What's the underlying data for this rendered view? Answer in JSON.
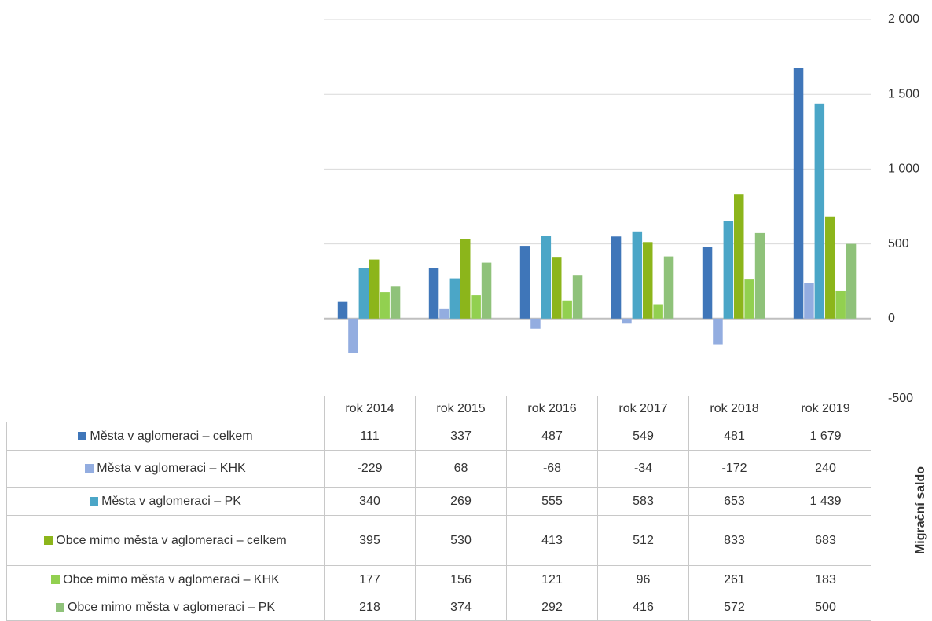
{
  "chart_data": {
    "type": "bar",
    "y_axis_label": "Migrační saldo",
    "categories": [
      "rok 2014",
      "rok 2015",
      "rok 2016",
      "rok 2017",
      "rok 2018",
      "rok 2019"
    ],
    "series": [
      {
        "name": "Města v aglomeraci – celkem",
        "color": "#3f76b9",
        "values": [
          111,
          337,
          487,
          549,
          481,
          1679
        ],
        "value_labels": [
          "111",
          "337",
          "487",
          "549",
          "481",
          "1 679"
        ]
      },
      {
        "name": "Města v aglomeraci – KHK",
        "color": "#93ade0",
        "values": [
          -229,
          68,
          -68,
          -34,
          -172,
          240
        ]
      },
      {
        "name": "Města v aglomeraci – PK",
        "color": "#4ba6c7",
        "values": [
          340,
          269,
          555,
          583,
          653,
          1439
        ],
        "value_labels": [
          "340",
          "269",
          "555",
          "583",
          "653",
          "1 439"
        ]
      },
      {
        "name": "Obce mimo města v aglomeraci – celkem",
        "color": "#8cb51b",
        "values": [
          395,
          530,
          413,
          512,
          833,
          683
        ]
      },
      {
        "name": "Obce mimo města v aglomeraci – KHK",
        "color": "#92d050",
        "values": [
          177,
          156,
          121,
          96,
          261,
          183
        ]
      },
      {
        "name": "Obce mimo města v aglomeraci – PK",
        "color": "#8fc27a",
        "values": [
          218,
          374,
          292,
          416,
          572,
          500
        ]
      }
    ],
    "ylim": [
      -500,
      2000
    ],
    "yticks": [
      -500,
      0,
      500,
      {
        "value": 1000,
        "label": "1 000"
      },
      {
        "value": 1500,
        "label": "1 500"
      },
      {
        "value": 2000,
        "label": "2 000"
      }
    ],
    "grid": true
  }
}
